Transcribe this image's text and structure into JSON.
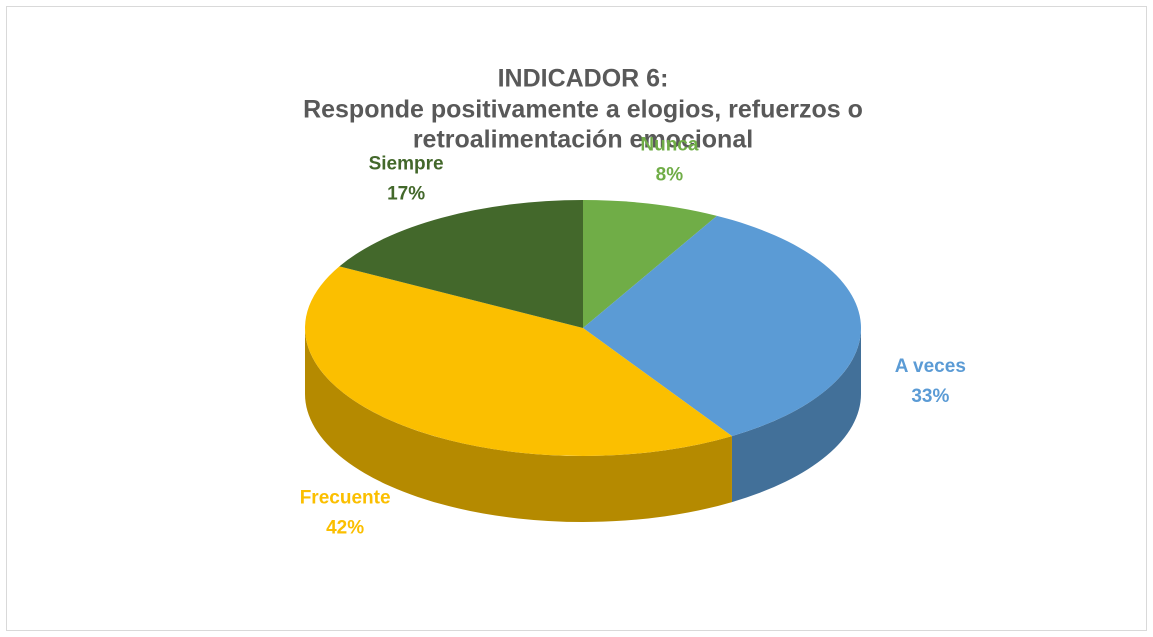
{
  "chart_data": {
    "type": "pie",
    "title": [
      "INDICADOR 6:",
      "Responde positivamente a elogios, refuerzos o",
      "retroalimentación emocional"
    ],
    "categories": [
      "Nunca",
      "A veces",
      "Frecuente",
      "Siempre"
    ],
    "values": [
      8,
      33,
      42,
      17
    ],
    "value_labels": [
      "8%",
      "33%",
      "42%",
      "17%"
    ],
    "colors": [
      "#70ad47",
      "#5b9bd5",
      "#fbbf00",
      "#43682b"
    ]
  }
}
